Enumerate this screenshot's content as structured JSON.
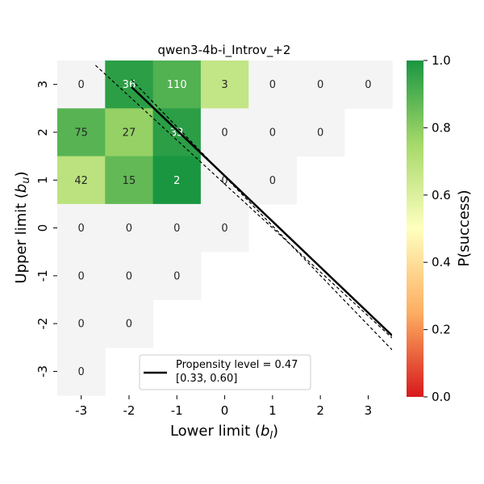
{
  "chart_data": {
    "type": "heatmap",
    "title": "qwen3-4b-i_Introv_+2",
    "xlabel": "Lower limit ($b_l$)",
    "ylabel": "Upper limit ($b_u$)",
    "x_ticks": [
      "-3",
      "-2",
      "-1",
      "0",
      "1",
      "2",
      "3"
    ],
    "y_ticks": [
      "3",
      "2",
      "1",
      "0",
      "-1",
      "-2",
      "-3"
    ],
    "colorbar": {
      "label": "P(success)",
      "range": [
        0.0,
        1.0
      ],
      "ticks": [
        "0.0",
        "0.2",
        "0.4",
        "0.6",
        "0.8",
        "1.0"
      ],
      "colors": [
        "#d7191c",
        "#fdae61",
        "#ffffbf",
        "#a6d96a",
        "#1a9641"
      ]
    },
    "empty_cell_color": "#f4f4f4",
    "cells": [
      {
        "xl": -3,
        "yu": 3,
        "count": "0",
        "p": null
      },
      {
        "xl": -2,
        "yu": 3,
        "count": "36",
        "p": 0.97
      },
      {
        "xl": -1,
        "yu": 3,
        "count": "110",
        "p": 0.9
      },
      {
        "xl": 0,
        "yu": 3,
        "count": "3",
        "p": 0.67
      },
      {
        "xl": 1,
        "yu": 3,
        "count": "0",
        "p": null
      },
      {
        "xl": 2,
        "yu": 3,
        "count": "0",
        "p": null
      },
      {
        "xl": 3,
        "yu": 3,
        "count": "0",
        "p": null
      },
      {
        "xl": -3,
        "yu": 2,
        "count": "75",
        "p": 0.89
      },
      {
        "xl": -2,
        "yu": 2,
        "count": "27",
        "p": 0.78
      },
      {
        "xl": -1,
        "yu": 2,
        "count": "33",
        "p": 0.97
      },
      {
        "xl": 0,
        "yu": 2,
        "count": "0",
        "p": null
      },
      {
        "xl": 1,
        "yu": 2,
        "count": "0",
        "p": null
      },
      {
        "xl": 2,
        "yu": 2,
        "count": "0",
        "p": null
      },
      {
        "xl": -3,
        "yu": 1,
        "count": "42",
        "p": 0.69
      },
      {
        "xl": -2,
        "yu": 1,
        "count": "15",
        "p": 0.87
      },
      {
        "xl": -1,
        "yu": 1,
        "count": "2",
        "p": 1.0
      },
      {
        "xl": 0,
        "yu": 1,
        "count": "0",
        "p": null
      },
      {
        "xl": 1,
        "yu": 1,
        "count": "0",
        "p": null
      },
      {
        "xl": -3,
        "yu": 0,
        "count": "0",
        "p": null
      },
      {
        "xl": -2,
        "yu": 0,
        "count": "0",
        "p": null
      },
      {
        "xl": -1,
        "yu": 0,
        "count": "0",
        "p": null
      },
      {
        "xl": 0,
        "yu": 0,
        "count": "0",
        "p": null
      },
      {
        "xl": -3,
        "yu": -1,
        "count": "0",
        "p": null
      },
      {
        "xl": -2,
        "yu": -1,
        "count": "0",
        "p": null
      },
      {
        "xl": -1,
        "yu": -1,
        "count": "0",
        "p": null
      },
      {
        "xl": -3,
        "yu": -2,
        "count": "0",
        "p": null
      },
      {
        "xl": -2,
        "yu": -2,
        "count": "0",
        "p": null
      },
      {
        "xl": -3,
        "yu": -3,
        "count": "0",
        "p": null
      }
    ],
    "propensity": {
      "level": 0.47,
      "ci": [
        0.33,
        0.6
      ],
      "legend_line1": "Propensity level = 0.47",
      "legend_line2": "[0.33, 0.60]",
      "central_line": {
        "x": [
          -1.95,
          3.5
        ],
        "y": [
          2.95,
          -2.25
        ]
      },
      "upper_dashed": {
        "x": [
          -2.7,
          3.5
        ],
        "y": [
          3.4,
          -2.3
        ]
      },
      "lower_dashed": {
        "x": [
          -1.95,
          3.5
        ],
        "y": [
          3.1,
          -2.55
        ]
      }
    }
  }
}
